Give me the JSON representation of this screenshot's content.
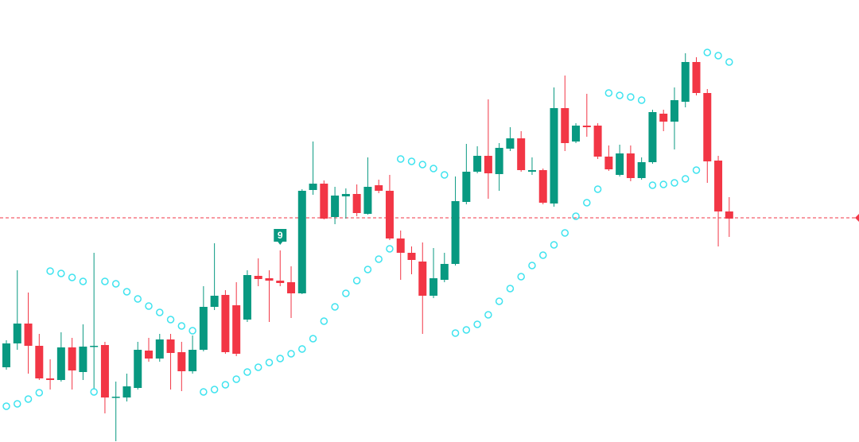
{
  "chart_data": {
    "type": "candlestick",
    "ylim": [
      0,
      556
    ],
    "up_color": "#089981",
    "down_color": "#f23645",
    "sar_color": "#3fe3ef",
    "price_line_color": "#f23645",
    "open": [
      94,
      124,
      149,
      121,
      80,
      78,
      119,
      88,
      120,
      122,
      56,
      56,
      68,
      115,
      105,
      129,
      113,
      89,
      116,
      170,
      185,
      172,
      154,
      209,
      206,
      203,
      201,
      187,
      317,
      325,
      283,
      309,
      312,
      287,
      323,
      316,
      256,
      238,
      227,
      184,
      204,
      224,
      302,
      340,
      360,
      337,
      369,
      382,
      340,
      342,
      300,
      420,
      378,
      398,
      398,
      359,
      336,
      363,
      332,
      352,
      413,
      403,
      428,
      478,
      439,
      354,
      290
    ],
    "high": [
      128,
      216,
      188,
      136,
      104,
      138,
      131,
      148,
      238,
      126,
      76,
      86,
      126,
      131,
      136,
      136,
      126,
      134,
      196,
      250,
      191,
      201,
      216,
      231,
      216,
      241,
      221,
      318,
      378,
      329,
      321,
      319,
      324,
      358,
      330,
      336,
      266,
      246,
      251,
      244,
      238,
      334,
      375,
      372,
      431,
      376,
      396,
      391,
      358,
      344,
      446,
      461,
      401,
      438,
      401,
      373,
      374,
      373,
      358,
      418,
      418,
      446,
      489,
      484,
      444,
      360,
      308
    ],
    "low": [
      91,
      116,
      86,
      78,
      66,
      76,
      66,
      78,
      66,
      36,
      1,
      51,
      66,
      101,
      101,
      66,
      64,
      86,
      114,
      166,
      111,
      108,
      151,
      196,
      151,
      196,
      156,
      186,
      311,
      280,
      274,
      281,
      284,
      286,
      313,
      254,
      204,
      211,
      136,
      181,
      201,
      222,
      299,
      338,
      306,
      316,
      366,
      340,
      336,
      299,
      296,
      366,
      376,
      384,
      356,
      341,
      334,
      328,
      330,
      350,
      391,
      368,
      421,
      436,
      326,
      246,
      258
    ],
    "close": [
      124,
      149,
      121,
      80,
      78,
      119,
      90,
      120,
      121,
      56,
      57,
      70,
      116,
      105,
      129,
      112,
      89,
      116,
      170,
      184,
      113,
      111,
      210,
      205,
      203,
      200,
      187,
      316,
      325,
      281,
      310,
      312,
      288,
      321,
      316,
      256,
      238,
      229,
      184,
      206,
      224,
      303,
      340,
      360,
      338,
      370,
      382,
      342,
      342,
      301,
      420,
      376,
      398,
      396,
      359,
      343,
      363,
      332,
      352,
      415,
      403,
      430,
      478,
      439,
      353,
      290,
      281
    ],
    "sar": [
      45,
      48,
      54,
      62,
      215,
      212,
      207,
      202,
      63,
      202,
      199,
      189,
      180,
      171,
      163,
      154,
      146,
      140,
      63,
      66,
      72,
      79,
      88,
      94,
      100,
      105,
      111,
      117,
      130,
      152,
      170,
      187,
      203,
      217,
      230,
      243,
      356,
      353,
      349,
      344,
      336,
      137,
      141,
      148,
      160,
      177,
      193,
      208,
      222,
      235,
      248,
      263,
      284,
      301,
      318,
      439,
      436,
      434,
      430,
      323,
      324,
      326,
      331,
      342,
      490,
      486,
      478
    ],
    "price_line": 282,
    "annotation": "9"
  }
}
